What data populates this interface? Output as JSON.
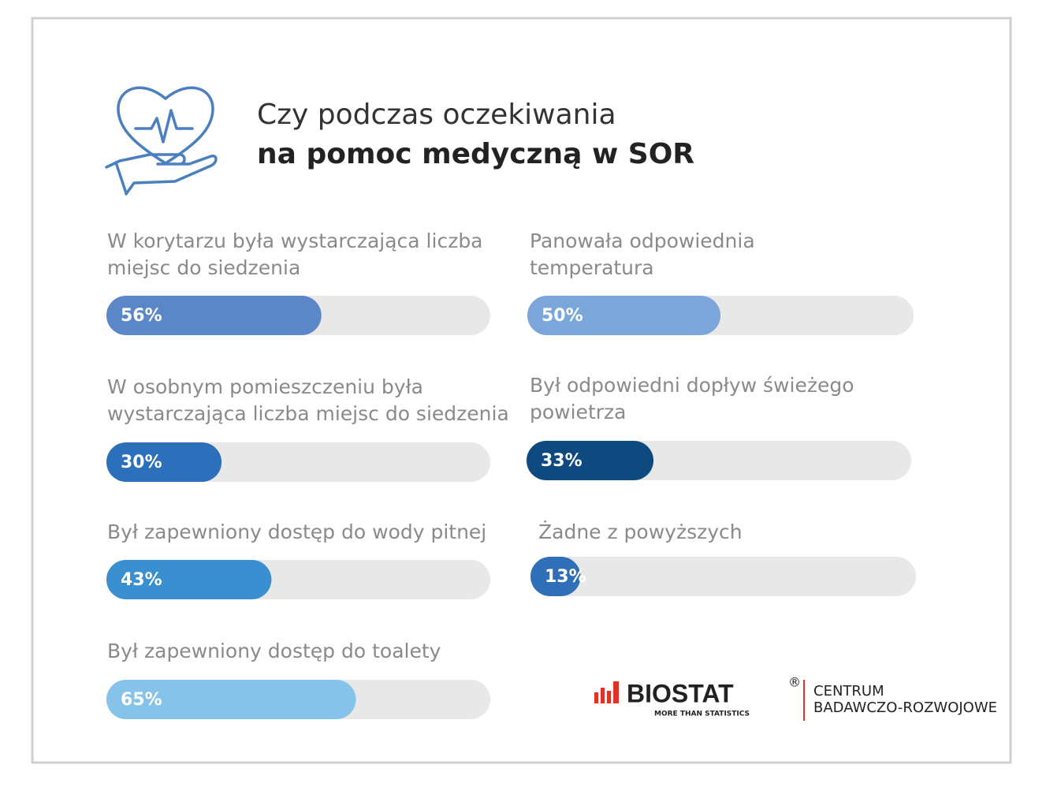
{
  "chart_data": {
    "type": "progress",
    "title": "Czy podczas oczekiwania",
    "subtitle": "na pomoc medyczną w SOR",
    "categories": [
      [
        "W korytarzu była wystarczająca liczba",
        "miejsc do siedzenia"
      ],
      [
        "Panowała odpowiednia",
        "temperatura"
      ],
      [
        "W osobnym pomieszczeniu była",
        "wystarczająca liczba miejsc do siedzenia"
      ],
      [
        "Był odpowiedni dopływ świeżego",
        "powietrza"
      ],
      [
        "Był zapewniony dostęp do wody pitnej"
      ],
      [
        "Żadne z powyższych"
      ],
      [
        "Był zapewniony dostęp do toalety"
      ]
    ],
    "values": [
      56,
      50,
      30,
      33,
      43,
      13,
      65
    ],
    "value_labels": [
      "56%",
      "50%",
      "30%",
      "33%",
      "43%",
      "13%",
      "65%"
    ],
    "colors": [
      "#5b87c8",
      "#7ba6d9",
      "#2c6fbb",
      "#0e4a80",
      "#3a8fd0",
      "#2f6fb8",
      "#85c3ea"
    ],
    "xlim": [
      0,
      100
    ],
    "logo": {
      "brand": "BIOSTAT",
      "mark": "®",
      "tagline": "MORE THAN STATISTICS",
      "org": [
        "CENTRUM",
        "BADAWCZO-ROZWOJOWE"
      ]
    }
  }
}
